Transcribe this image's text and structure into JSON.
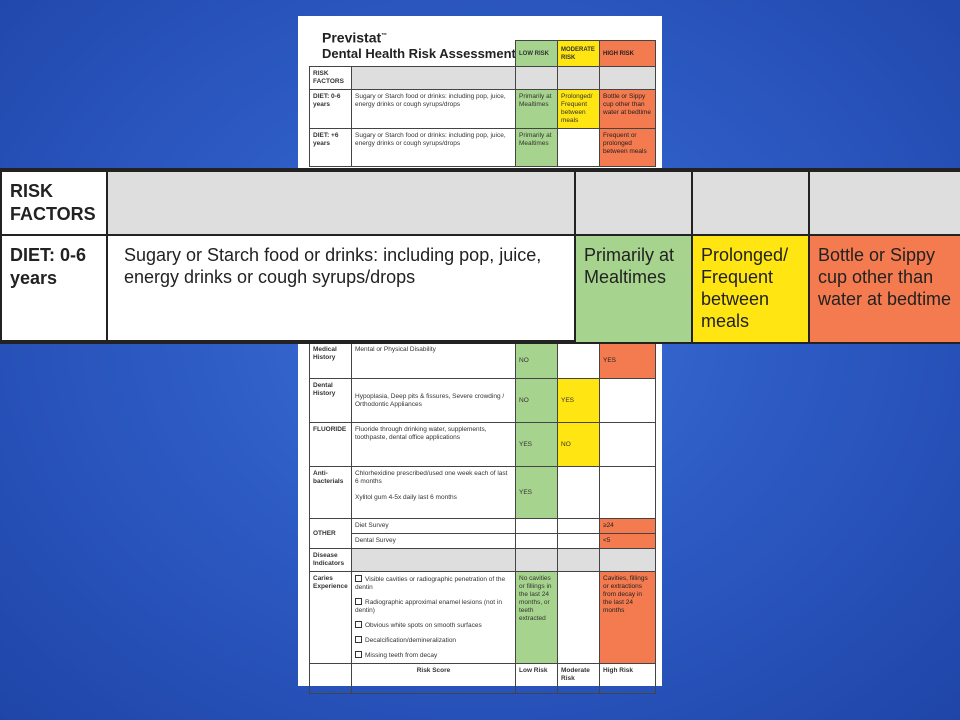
{
  "document": {
    "brand": "Previstat",
    "trademark": "™",
    "title": "Dental Health Risk Assessment"
  },
  "columns": {
    "low": "LOW RISK",
    "moderate": "MODERATE RISK",
    "high": "HIGH RISK"
  },
  "sections": {
    "risk_factors": "RISK FACTORS",
    "disease_indicators": "Disease Indicators"
  },
  "rows": {
    "diet_0_6": {
      "factor": "DIET: 0-6 years",
      "description": "Sugary or Starch food or drinks: including pop, juice, energy drinks or cough syrups/drops",
      "low": "Primarily at Mealtimes",
      "moderate": "Prolonged/ Frequent between meals",
      "high": "Bottle or Sippy cup other than water at bedtime"
    },
    "diet_6_plus": {
      "factor": "DIET: +6 years",
      "description": "Sugary or Starch food or drinks: including pop, juice, energy drinks or cough syrups/drops",
      "low": "Primarily at Mealtimes",
      "high": "Frequent or prolonged between meals"
    },
    "medical": {
      "factor": "Medical History",
      "description": "Mental or Physical Disability",
      "low": "NO",
      "high": "YES"
    },
    "dental": {
      "factor": "Dental History",
      "description": "Hypoplasia, Deep pits & fissures, Severe crowding / Orthodontic Appliances",
      "low": "NO",
      "moderate": "YES"
    },
    "fluoride": {
      "factor": "FLUORIDE",
      "description": "Fluoride through drinking water, supplements, toothpaste, dental office applications",
      "low": "YES",
      "moderate": "NO"
    },
    "antibacterials": {
      "factor": "Anti-bacterials",
      "description1": "Chlorhexidine prescribed/used one week each of last 6 months",
      "description2": "Xylitol gum 4-5x daily last 6 months",
      "low": "YES"
    },
    "other": {
      "factor": "OTHER",
      "diet_survey": "Diet Survey",
      "diet_high": "≥24",
      "dental_survey": "Dental Survey",
      "dental_high": "<5"
    },
    "caries": {
      "factor": "Caries Experience",
      "items": [
        "Visible cavities or radiographic penetration of the dentin",
        "Radiographic approximal enamel lesions (not in dentin)",
        "Obvious white spots on smooth surfaces",
        "Decalcification/demineralization",
        "Missing teeth from decay"
      ],
      "low": "No cavities or fillings in the last 24 months, or teeth extracted",
      "high": "Cavities, fillings or extractions from decay in the last 24 months"
    },
    "score": {
      "label": "Risk Score",
      "low": "Low Risk",
      "moderate": "Moderate Risk",
      "high": "High Risk"
    }
  },
  "colors": {
    "background": "#2d5bc4",
    "low": "#a6d38d",
    "moderate": "#ffe511",
    "high": "#f47a4f",
    "section": "#dedede"
  }
}
